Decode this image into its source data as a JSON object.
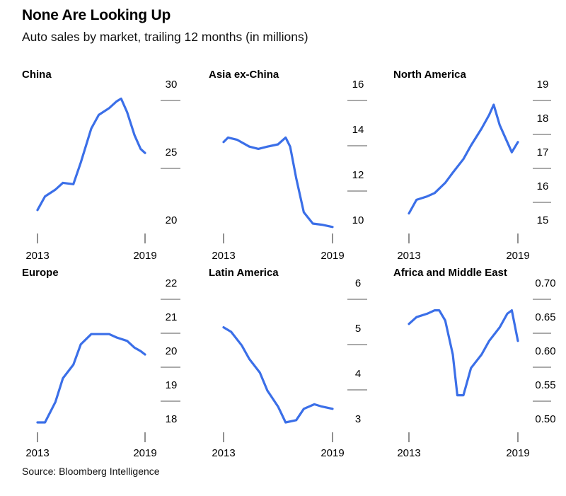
{
  "title": "None Are Looking Up",
  "subtitle": "Auto sales by market, trailing 12 months (in millions)",
  "source": "Source: Bloomberg Intelligence",
  "colors": {
    "line": "#3b6fe8",
    "tick": "#555555"
  },
  "chart_data": [
    {
      "type": "line",
      "title": "China",
      "x_ticks": [
        "2013",
        "2019"
      ],
      "y_ticks": [
        "30",
        "25",
        "20"
      ],
      "ylim": [
        20,
        30
      ],
      "series": [
        {
          "x": [
            "2013-01",
            "2013-06",
            "2014-01",
            "2014-06",
            "2015-01",
            "2015-06",
            "2016-01",
            "2016-06",
            "2017-01",
            "2017-06",
            "2017-09",
            "2018-01",
            "2018-06",
            "2018-10",
            "2019-01"
          ],
          "values": [
            21.0,
            22.0,
            22.5,
            23.0,
            22.9,
            24.5,
            27.0,
            28.0,
            28.5,
            29.0,
            29.2,
            28.2,
            26.5,
            25.5,
            25.2
          ]
        }
      ]
    },
    {
      "type": "line",
      "title": "Asia ex-China",
      "x_ticks": [
        "2013",
        "2019"
      ],
      "y_ticks": [
        "16",
        "14",
        "12",
        "10"
      ],
      "ylim": [
        10,
        16
      ],
      "series": [
        {
          "x": [
            "2013-01",
            "2013-04",
            "2013-10",
            "2014-06",
            "2014-12",
            "2015-06",
            "2016-01",
            "2016-06",
            "2016-09",
            "2017-01",
            "2017-06",
            "2017-12",
            "2018-06",
            "2019-01"
          ],
          "values": [
            13.6,
            13.8,
            13.7,
            13.4,
            13.3,
            13.4,
            13.5,
            13.8,
            13.4,
            12.0,
            10.5,
            10.0,
            9.95,
            9.85
          ]
        }
      ]
    },
    {
      "type": "line",
      "title": "North America",
      "x_ticks": [
        "2013",
        "2019"
      ],
      "y_ticks": [
        "19",
        "18",
        "17",
        "16",
        "15"
      ],
      "ylim": [
        15,
        19
      ],
      "series": [
        {
          "x": [
            "2013-01",
            "2013-06",
            "2014-01",
            "2014-06",
            "2015-01",
            "2015-06",
            "2016-01",
            "2016-06",
            "2017-01",
            "2017-06",
            "2017-09",
            "2018-01",
            "2018-06",
            "2018-09",
            "2019-01"
          ],
          "values": [
            15.3,
            15.7,
            15.8,
            15.9,
            16.2,
            16.5,
            16.9,
            17.3,
            17.8,
            18.2,
            18.5,
            17.9,
            17.4,
            17.1,
            17.4
          ]
        }
      ]
    },
    {
      "type": "line",
      "title": "Europe",
      "x_ticks": [
        "2013",
        "2019"
      ],
      "y_ticks": [
        "22",
        "21",
        "20",
        "19",
        "18"
      ],
      "ylim": [
        18,
        22
      ],
      "series": [
        {
          "x": [
            "2013-01",
            "2013-06",
            "2014-01",
            "2014-06",
            "2015-01",
            "2015-06",
            "2016-01",
            "2016-06",
            "2017-01",
            "2017-06",
            "2018-01",
            "2018-06",
            "2018-10",
            "2019-01"
          ],
          "values": [
            18.0,
            18.0,
            18.6,
            19.3,
            19.7,
            20.3,
            20.6,
            20.6,
            20.6,
            20.5,
            20.4,
            20.2,
            20.1,
            20.0
          ]
        }
      ]
    },
    {
      "type": "line",
      "title": "Latin America",
      "x_ticks": [
        "2013",
        "2019"
      ],
      "y_ticks": [
        "6",
        "5",
        "4",
        "3"
      ],
      "ylim": [
        3,
        6
      ],
      "series": [
        {
          "x": [
            "2013-01",
            "2013-06",
            "2014-01",
            "2014-06",
            "2015-01",
            "2015-06",
            "2016-01",
            "2016-06",
            "2017-01",
            "2017-06",
            "2018-01",
            "2018-06",
            "2019-01"
          ],
          "values": [
            5.1,
            5.0,
            4.7,
            4.4,
            4.1,
            3.7,
            3.35,
            3.0,
            3.05,
            3.3,
            3.4,
            3.35,
            3.3
          ]
        }
      ]
    },
    {
      "type": "line",
      "title": "Africa and Middle East",
      "x_ticks": [
        "2013",
        "2019"
      ],
      "y_ticks": [
        "0.70",
        "0.65",
        "0.60",
        "0.55",
        "0.50"
      ],
      "ylim": [
        0.5,
        0.7
      ],
      "series": [
        {
          "x": [
            "2013-01",
            "2013-06",
            "2014-01",
            "2014-06",
            "2014-09",
            "2015-01",
            "2015-06",
            "2015-09",
            "2016-01",
            "2016-06",
            "2017-01",
            "2017-06",
            "2018-01",
            "2018-06",
            "2018-09",
            "2019-01"
          ],
          "values": [
            0.645,
            0.655,
            0.66,
            0.665,
            0.665,
            0.65,
            0.6,
            0.54,
            0.54,
            0.58,
            0.6,
            0.62,
            0.64,
            0.66,
            0.665,
            0.62
          ]
        }
      ]
    }
  ]
}
